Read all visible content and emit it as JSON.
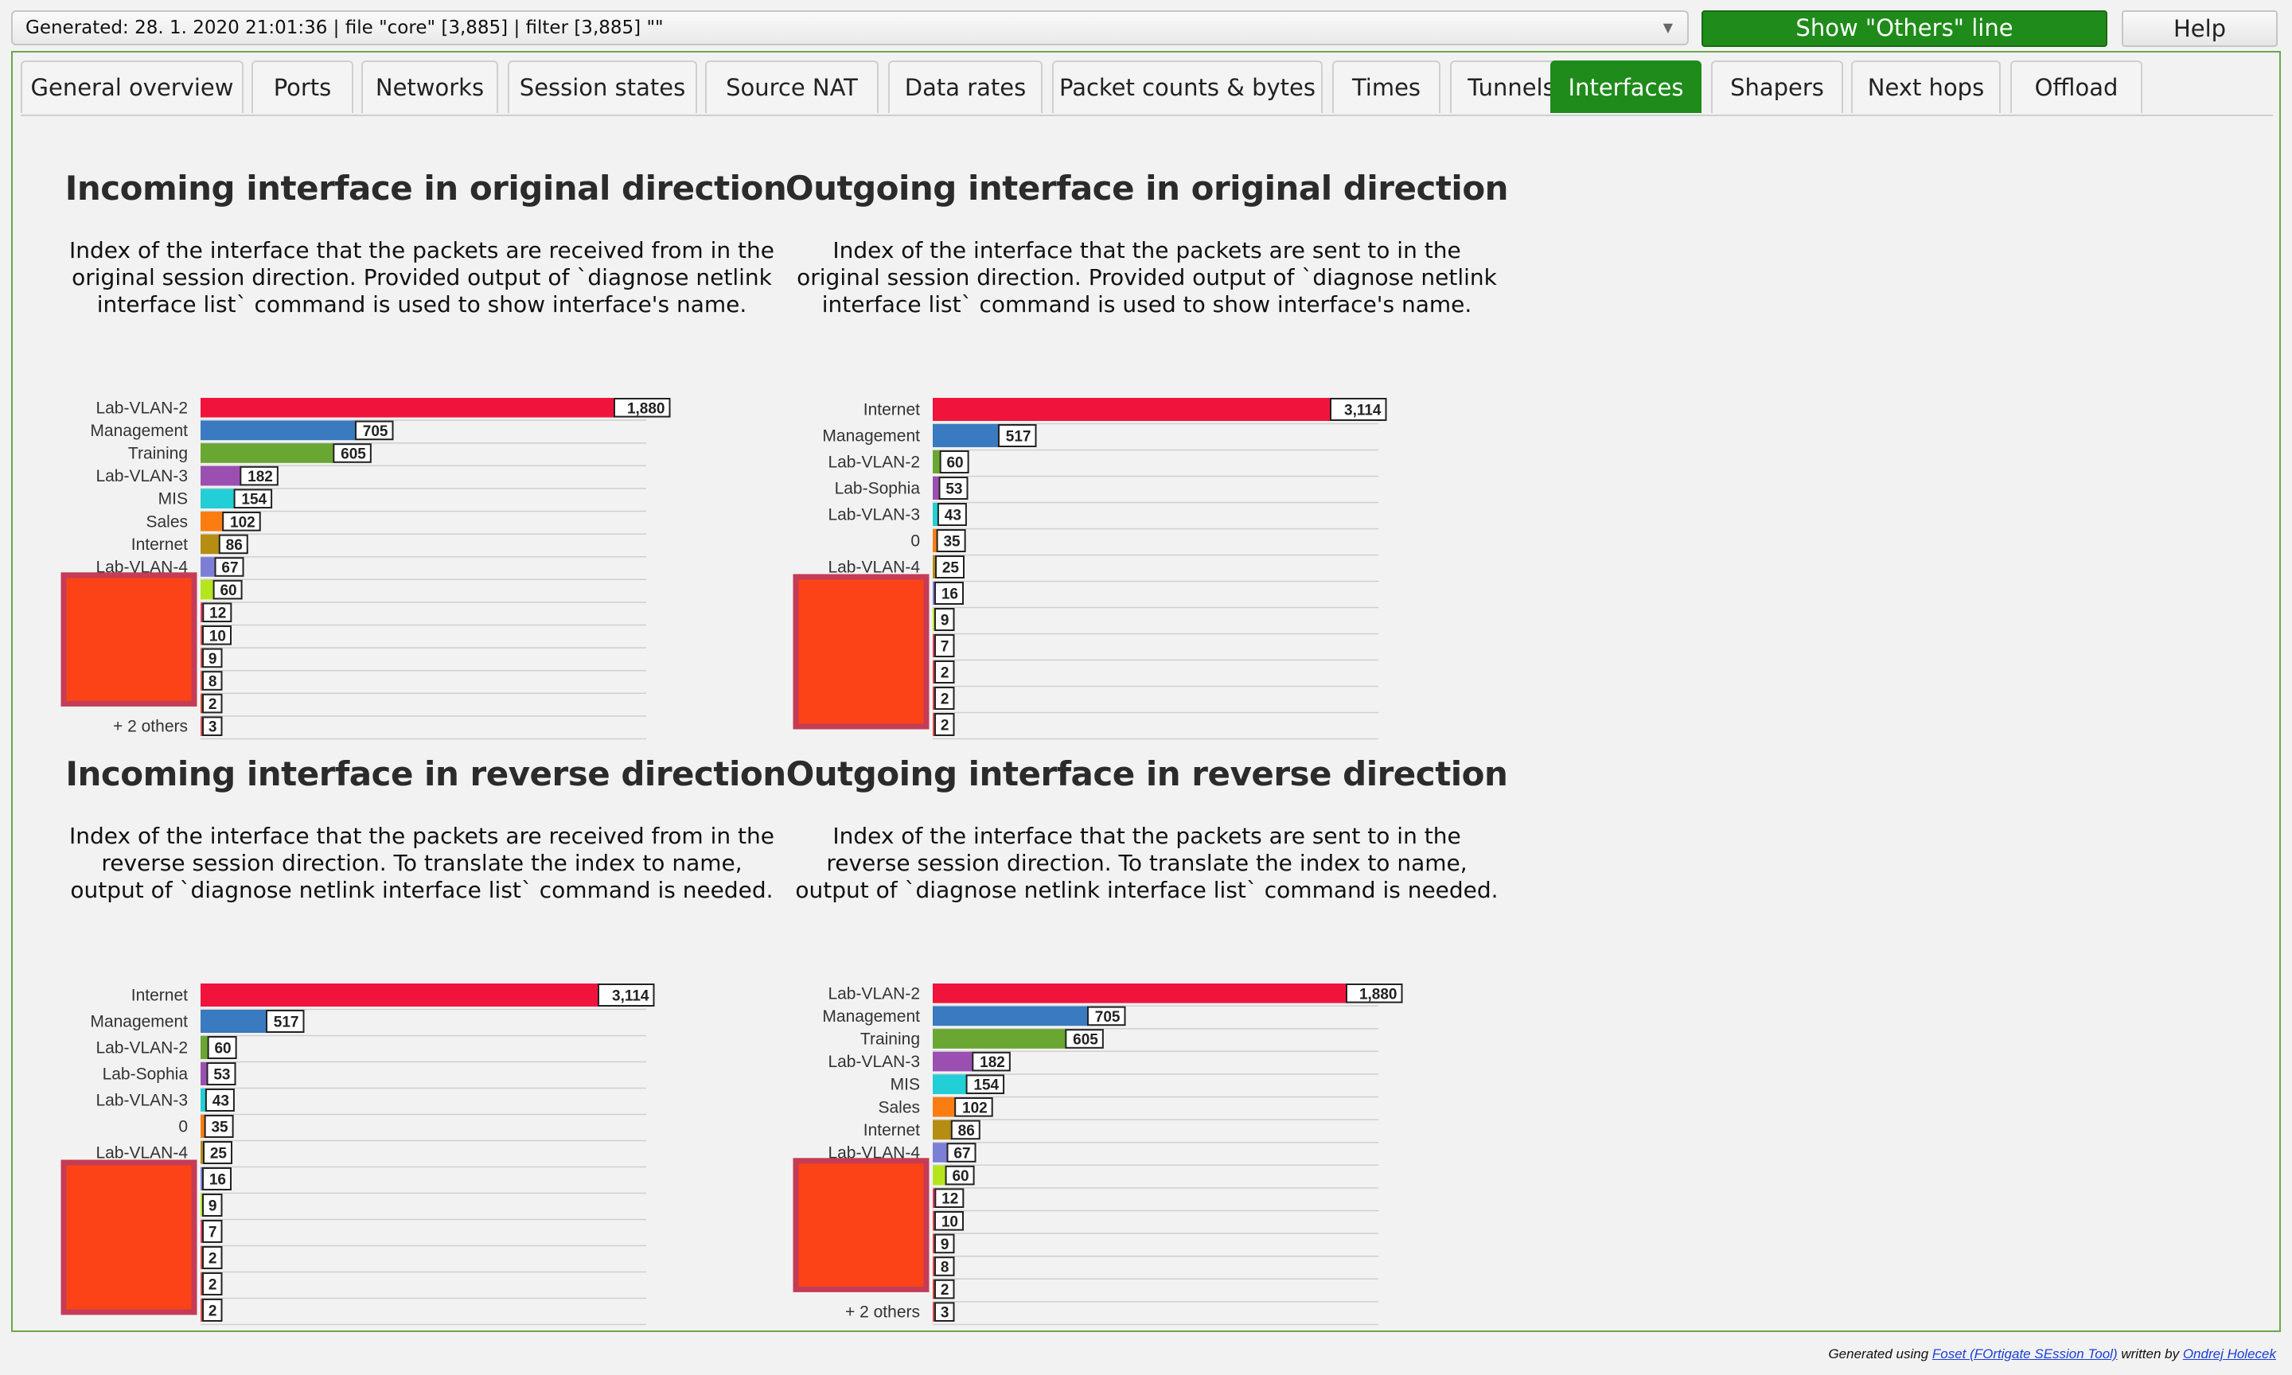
{
  "topbar": {
    "filter_text": "Generated: 28. 1. 2020 21:01:36 | file \"core\" [3,885] | filter [3,885] \"\"",
    "others_label": "Show \"Others\" line",
    "help_label": "Help"
  },
  "tabs": [
    {
      "label": "General overview"
    },
    {
      "label": "Ports"
    },
    {
      "label": "Networks"
    },
    {
      "label": "Session states"
    },
    {
      "label": "Source NAT"
    },
    {
      "label": "Data rates"
    },
    {
      "label": "Packet counts & bytes"
    },
    {
      "label": "Times"
    },
    {
      "label": "Tunnels"
    },
    {
      "label": "Interfaces",
      "active": true
    },
    {
      "label": "Shapers"
    },
    {
      "label": "Next hops"
    },
    {
      "label": "Offload"
    }
  ],
  "colors": {
    "accent": "#1f8b1a",
    "palette": [
      "#f0143c",
      "#3a7ac0",
      "#6aa632",
      "#9b4fb0",
      "#23cfd6",
      "#fb7d12",
      "#b58d12",
      "#7d7fd6",
      "#b5e61d",
      "#e73a5d",
      "#e34444",
      "#d94444",
      "#e34a44",
      "#d8442f",
      "#d44a4a"
    ],
    "placeholder_fill": "#fc4318",
    "placeholder_border": "#c43c56"
  },
  "charts": [
    {
      "title": "Incoming interface in original direction",
      "description": "Index of the interface that the packets are received from in the original session direction. Provided output of `diagnose netlink interface list` command is used to show interface's name.",
      "chart_data": {
        "type": "bar",
        "orientation": "horizontal",
        "categories": [
          "Lab-VLAN-2",
          "Management",
          "Training",
          "Lab-VLAN-3",
          "MIS",
          "Sales",
          "Internet",
          "Lab-VLAN-4",
          "",
          "",
          "",
          "",
          "",
          "",
          "+ 2 others"
        ],
        "values": [
          1880,
          705,
          605,
          182,
          154,
          102,
          86,
          67,
          60,
          12,
          10,
          9,
          8,
          2,
          3
        ],
        "value_labels": [
          "1,880",
          "705",
          "605",
          "182",
          "154",
          "102",
          "86",
          "67",
          "60",
          "12",
          "10",
          "9",
          "8",
          "2",
          "3"
        ],
        "xlim": [
          0,
          2000
        ]
      }
    },
    {
      "title": "Outgoing interface in original direction",
      "description": "Index of the interface that the packets are sent to in the original session direction. Provided output of `diagnose netlink interface list` command is used to show interface's name.",
      "chart_data": {
        "type": "bar",
        "orientation": "horizontal",
        "categories": [
          "Internet",
          "Management",
          "Lab-VLAN-2",
          "Lab-Sophia",
          "Lab-VLAN-3",
          "0",
          "Lab-VLAN-4",
          "",
          "",
          "",
          "",
          "",
          ""
        ],
        "values": [
          3114,
          517,
          60,
          53,
          43,
          35,
          25,
          16,
          9,
          7,
          2,
          2,
          2
        ],
        "value_labels": [
          "3,114",
          "517",
          "60",
          "53",
          "43",
          "35",
          "25",
          "16",
          "9",
          "7",
          "2",
          "2",
          "2"
        ],
        "xlim": [
          0,
          3300
        ]
      }
    },
    {
      "title": "Incoming interface in reverse direction",
      "description": "Index of the interface that the packets are received from in the reverse session direction. To translate the index to name, output of `diagnose netlink interface list` command is needed.",
      "chart_data": {
        "type": "bar",
        "orientation": "horizontal",
        "categories": [
          "Internet",
          "Management",
          "Lab-VLAN-2",
          "Lab-Sophia",
          "Lab-VLAN-3",
          "0",
          "Lab-VLAN-4",
          "",
          "",
          "",
          "",
          "",
          ""
        ],
        "values": [
          3114,
          517,
          60,
          53,
          43,
          35,
          25,
          16,
          9,
          7,
          2,
          2,
          2
        ],
        "value_labels": [
          "3,114",
          "517",
          "60",
          "53",
          "43",
          "35",
          "25",
          "16",
          "9",
          "7",
          "2",
          "2",
          "2"
        ],
        "xlim": [
          0,
          3300
        ]
      }
    },
    {
      "title": "Outgoing interface in reverse direction",
      "description": "Index of the interface that the packets are sent to in the reverse session direction. To translate the index to name, output of `diagnose netlink interface list` command is needed.",
      "chart_data": {
        "type": "bar",
        "orientation": "horizontal",
        "categories": [
          "Lab-VLAN-2",
          "Management",
          "Training",
          "Lab-VLAN-3",
          "MIS",
          "Sales",
          "Internet",
          "Lab-VLAN-4",
          "",
          "",
          "",
          "",
          "",
          "",
          "+ 2 others"
        ],
        "values": [
          1880,
          705,
          605,
          182,
          154,
          102,
          86,
          67,
          60,
          12,
          10,
          9,
          8,
          2,
          3
        ],
        "value_labels": [
          "1,880",
          "705",
          "605",
          "182",
          "154",
          "102",
          "86",
          "67",
          "60",
          "12",
          "10",
          "9",
          "8",
          "2",
          "3"
        ],
        "xlim": [
          0,
          2000
        ]
      }
    }
  ],
  "footer": {
    "prefix": "Generated using ",
    "link1": "Foset (FOrtigate SEssion Tool)",
    "middle": " written by ",
    "link2": "Ondrej Holecek"
  }
}
